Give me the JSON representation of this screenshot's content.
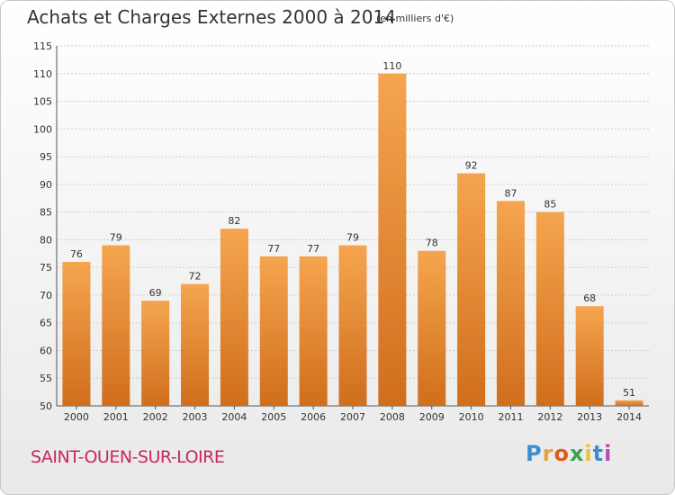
{
  "title": "Achats et Charges Externes 2000 à 2014",
  "subtitle": "(en milliers d'€)",
  "city": "SAINT-OUEN-SUR-LOIRE",
  "logo": {
    "letters": [
      "P",
      "r",
      "o",
      "x",
      "i",
      "t",
      "i"
    ],
    "colors": [
      "#3a8fd0",
      "#e7a13a",
      "#e05a1a",
      "#3aa34a",
      "#e7c23a",
      "#3a8fd0",
      "#b44fb0"
    ]
  },
  "colors": {
    "bar_light": "#f5a54e",
    "bar_dark": "#d06e1c",
    "grid": "#cccccc"
  },
  "chart_data": {
    "type": "bar",
    "categories": [
      "2000",
      "2001",
      "2002",
      "2003",
      "2004",
      "2005",
      "2006",
      "2007",
      "2008",
      "2009",
      "2010",
      "2011",
      "2012",
      "2013",
      "2014"
    ],
    "values": [
      76,
      79,
      69,
      72,
      82,
      77,
      77,
      79,
      110,
      78,
      92,
      87,
      85,
      68,
      51
    ],
    "title": "Achats et Charges Externes 2000 à 2014",
    "subtitle": "(en milliers d'€)",
    "ylim": [
      50,
      115
    ],
    "yticks": [
      50,
      55,
      60,
      65,
      70,
      75,
      80,
      85,
      90,
      95,
      100,
      105,
      110,
      115
    ],
    "grid": true,
    "legend": "none"
  }
}
